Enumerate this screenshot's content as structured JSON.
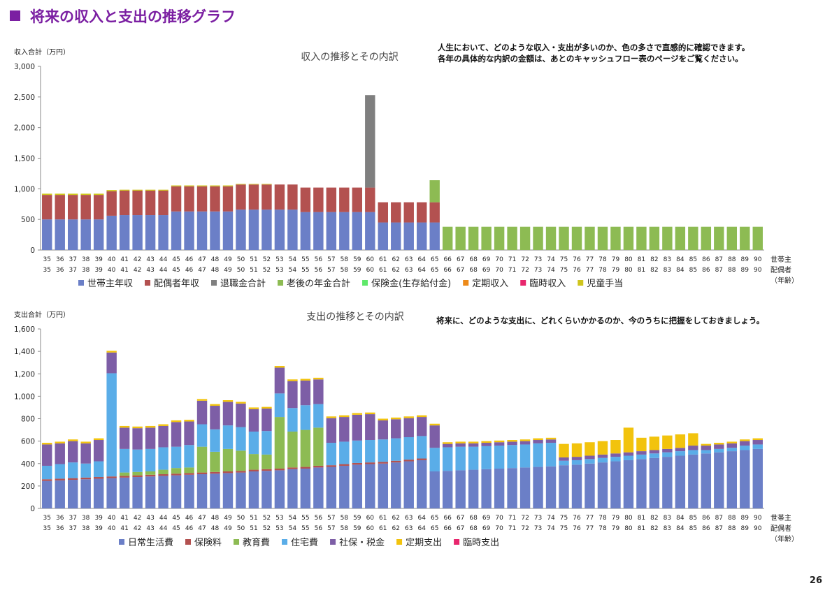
{
  "page": {
    "title": "将来の収入と支出の推移グラフ",
    "page_number": "26",
    "income_note": [
      "人生において、どのような収入・支出が多いのか、色の多さで直感的に確認できます。",
      "各年の具体的な内訳の金額は、あとのキャッシュフロー表のページをご覧ください。"
    ],
    "expense_note": "将来に、どのような支出に、どれくらいかかるのか、今のうちに把握をしておきましょう。"
  },
  "chart_data": [
    {
      "type": "bar",
      "stacked": true,
      "title": "収入の推移とその内訳",
      "ylabel": "収入合計（万円）",
      "ylim": [
        0,
        3000
      ],
      "yticks": [
        "0",
        "500",
        "1,000",
        "1,500",
        "2,000",
        "2,500",
        "3,000"
      ],
      "grid": false,
      "legend_position": "bottom",
      "x_axis_label": [
        "世帯主",
        "配偶者",
        "（年齢）"
      ],
      "categories_head": [
        "35",
        "36",
        "37",
        "38",
        "39",
        "40",
        "41",
        "42",
        "43",
        "44",
        "45",
        "46",
        "47",
        "48",
        "49",
        "50",
        "51",
        "52",
        "53",
        "54",
        "55",
        "56",
        "57",
        "58",
        "59",
        "60",
        "61",
        "62",
        "63",
        "64",
        "65",
        "66",
        "67",
        "68",
        "69",
        "70",
        "71",
        "72",
        "73",
        "74",
        "75",
        "76",
        "77",
        "78",
        "79",
        "80",
        "81",
        "82",
        "83",
        "84",
        "85",
        "86",
        "87",
        "88",
        "89",
        "90"
      ],
      "categories_spouse": [
        "35",
        "36",
        "37",
        "38",
        "39",
        "40",
        "41",
        "42",
        "43",
        "44",
        "45",
        "46",
        "47",
        "48",
        "49",
        "50",
        "51",
        "52",
        "53",
        "54",
        "55",
        "56",
        "57",
        "58",
        "59",
        "60",
        "61",
        "62",
        "63",
        "64",
        "65",
        "66",
        "67",
        "68",
        "69",
        "70",
        "71",
        "72",
        "73",
        "74",
        "75",
        "76",
        "77",
        "78",
        "79",
        "80",
        "81",
        "82",
        "83",
        "84",
        "85",
        "86",
        "87",
        "88",
        "89",
        "90"
      ],
      "series": [
        {
          "name": "世帯主年収",
          "color": "#6b7fc7",
          "values": [
            500,
            500,
            500,
            500,
            500,
            560,
            570,
            570,
            570,
            570,
            630,
            630,
            630,
            630,
            630,
            660,
            660,
            660,
            660,
            660,
            620,
            620,
            620,
            620,
            620,
            620,
            450,
            450,
            450,
            450,
            450,
            0,
            0,
            0,
            0,
            0,
            0,
            0,
            0,
            0,
            0,
            0,
            0,
            0,
            0,
            0,
            0,
            0,
            0,
            0,
            0,
            0,
            0,
            0,
            0,
            0
          ]
        },
        {
          "name": "配偶者年収",
          "color": "#b35150",
          "values": [
            400,
            400,
            400,
            400,
            400,
            400,
            400,
            400,
            400,
            400,
            410,
            410,
            410,
            410,
            410,
            410,
            410,
            410,
            410,
            410,
            400,
            400,
            400,
            400,
            400,
            400,
            330,
            330,
            330,
            330,
            330,
            0,
            0,
            0,
            0,
            0,
            0,
            0,
            0,
            0,
            0,
            0,
            0,
            0,
            0,
            0,
            0,
            0,
            0,
            0,
            0,
            0,
            0,
            0,
            0,
            0
          ]
        },
        {
          "name": "退職金合計",
          "color": "#7f7f7f",
          "values": [
            0,
            0,
            0,
            0,
            0,
            0,
            0,
            0,
            0,
            0,
            0,
            0,
            0,
            0,
            0,
            0,
            0,
            0,
            0,
            0,
            0,
            0,
            0,
            0,
            0,
            1510,
            0,
            0,
            0,
            0,
            0,
            0,
            0,
            0,
            0,
            0,
            0,
            0,
            0,
            0,
            0,
            0,
            0,
            0,
            0,
            0,
            0,
            0,
            0,
            0,
            0,
            0,
            0,
            0,
            0,
            0
          ]
        },
        {
          "name": "老後の年金合計",
          "color": "#8dbb53",
          "values": [
            0,
            0,
            0,
            0,
            0,
            0,
            0,
            0,
            0,
            0,
            0,
            0,
            0,
            0,
            0,
            0,
            0,
            0,
            0,
            0,
            0,
            0,
            0,
            0,
            0,
            0,
            0,
            0,
            0,
            0,
            360,
            380,
            380,
            380,
            380,
            380,
            380,
            380,
            380,
            380,
            380,
            380,
            380,
            380,
            380,
            380,
            380,
            380,
            380,
            380,
            380,
            380,
            380,
            380,
            380,
            380
          ]
        },
        {
          "name": "保険金(生存給付金)",
          "color": "#5fe86a",
          "values": [
            0,
            0,
            0,
            0,
            0,
            0,
            0,
            0,
            0,
            0,
            0,
            0,
            0,
            0,
            0,
            0,
            0,
            0,
            0,
            0,
            0,
            0,
            0,
            0,
            0,
            0,
            0,
            0,
            0,
            0,
            0,
            0,
            0,
            0,
            0,
            0,
            0,
            0,
            0,
            0,
            0,
            0,
            0,
            0,
            0,
            0,
            0,
            0,
            0,
            0,
            0,
            0,
            0,
            0,
            0,
            0
          ]
        },
        {
          "name": "定期収入",
          "color": "#ed8a1a",
          "values": [
            0,
            0,
            0,
            0,
            0,
            0,
            0,
            0,
            0,
            0,
            0,
            0,
            0,
            0,
            0,
            0,
            0,
            0,
            0,
            0,
            0,
            0,
            0,
            0,
            0,
            0,
            0,
            0,
            0,
            0,
            0,
            0,
            0,
            0,
            0,
            0,
            0,
            0,
            0,
            0,
            0,
            0,
            0,
            0,
            0,
            0,
            0,
            0,
            0,
            0,
            0,
            0,
            0,
            0,
            0,
            0
          ]
        },
        {
          "name": "臨時収入",
          "color": "#e8266d",
          "values": [
            0,
            0,
            0,
            0,
            0,
            0,
            0,
            0,
            0,
            0,
            0,
            0,
            0,
            0,
            0,
            0,
            0,
            0,
            0,
            0,
            0,
            0,
            0,
            0,
            0,
            0,
            0,
            0,
            0,
            0,
            0,
            0,
            0,
            0,
            0,
            0,
            0,
            0,
            0,
            0,
            0,
            0,
            0,
            0,
            0,
            0,
            0,
            0,
            0,
            0,
            0,
            0,
            0,
            0,
            0,
            0
          ]
        },
        {
          "name": "児童手当",
          "color": "#cfc51d",
          "values": [
            20,
            20,
            20,
            20,
            20,
            20,
            15,
            15,
            15,
            15,
            15,
            15,
            15,
            15,
            15,
            10,
            10,
            10,
            0,
            0,
            0,
            0,
            0,
            0,
            0,
            0,
            0,
            0,
            0,
            0,
            0,
            0,
            0,
            0,
            0,
            0,
            0,
            0,
            0,
            0,
            0,
            0,
            0,
            0,
            0,
            0,
            0,
            0,
            0,
            0,
            0,
            0,
            0,
            0,
            0,
            0
          ]
        }
      ]
    },
    {
      "type": "bar",
      "stacked": true,
      "title": "支出の推移とその内訳",
      "ylabel": "支出合計（万円）",
      "ylim": [
        0,
        1600
      ],
      "yticks": [
        "0",
        "200",
        "400",
        "600",
        "800",
        "1,000",
        "1,200",
        "1,400",
        "1,600"
      ],
      "grid": false,
      "legend_position": "bottom",
      "x_axis_label": [
        "世帯主",
        "配偶者",
        "（年齢）"
      ],
      "categories_head": [
        "35",
        "36",
        "37",
        "38",
        "39",
        "40",
        "41",
        "42",
        "43",
        "44",
        "45",
        "46",
        "47",
        "48",
        "49",
        "50",
        "51",
        "52",
        "53",
        "54",
        "55",
        "56",
        "57",
        "58",
        "59",
        "60",
        "61",
        "62",
        "63",
        "64",
        "65",
        "66",
        "67",
        "68",
        "69",
        "70",
        "71",
        "72",
        "73",
        "74",
        "75",
        "76",
        "77",
        "78",
        "79",
        "80",
        "81",
        "82",
        "83",
        "84",
        "85",
        "86",
        "87",
        "88",
        "89",
        "90"
      ],
      "categories_spouse": [
        "35",
        "36",
        "37",
        "38",
        "39",
        "40",
        "41",
        "42",
        "43",
        "44",
        "45",
        "46",
        "47",
        "48",
        "49",
        "50",
        "51",
        "52",
        "53",
        "54",
        "55",
        "56",
        "57",
        "58",
        "59",
        "60",
        "61",
        "62",
        "63",
        "64",
        "65",
        "66",
        "67",
        "68",
        "69",
        "70",
        "71",
        "72",
        "73",
        "74",
        "75",
        "76",
        "77",
        "78",
        "79",
        "80",
        "81",
        "82",
        "83",
        "84",
        "85",
        "86",
        "87",
        "88",
        "89",
        "90"
      ],
      "series": [
        {
          "name": "日常生活費",
          "color": "#6b7fc7",
          "values": [
            245,
            250,
            255,
            260,
            265,
            270,
            275,
            280,
            285,
            290,
            295,
            300,
            305,
            310,
            315,
            320,
            330,
            335,
            340,
            350,
            355,
            365,
            370,
            380,
            390,
            395,
            400,
            410,
            420,
            430,
            330,
            335,
            340,
            345,
            350,
            355,
            360,
            365,
            370,
            375,
            385,
            390,
            400,
            410,
            420,
            430,
            440,
            450,
            460,
            470,
            480,
            490,
            500,
            510,
            520,
            530
          ]
        },
        {
          "name": "保険料",
          "color": "#b35150",
          "values": [
            15,
            15,
            15,
            15,
            15,
            15,
            15,
            15,
            15,
            15,
            15,
            15,
            15,
            15,
            15,
            15,
            15,
            15,
            15,
            15,
            15,
            15,
            15,
            15,
            15,
            15,
            15,
            15,
            15,
            15,
            0,
            0,
            0,
            0,
            0,
            0,
            0,
            0,
            0,
            0,
            0,
            0,
            0,
            0,
            0,
            0,
            0,
            0,
            0,
            0,
            0,
            0,
            0,
            0,
            0,
            0
          ]
        },
        {
          "name": "教育費",
          "color": "#8dbb53",
          "values": [
            0,
            0,
            0,
            0,
            0,
            0,
            30,
            30,
            30,
            40,
            50,
            50,
            230,
            180,
            200,
            180,
            140,
            130,
            460,
            320,
            330,
            340,
            0,
            0,
            0,
            0,
            0,
            0,
            0,
            0,
            0,
            0,
            0,
            0,
            0,
            0,
            0,
            0,
            0,
            0,
            0,
            0,
            0,
            0,
            0,
            0,
            0,
            0,
            0,
            0,
            0,
            0,
            0,
            0,
            0,
            0
          ]
        },
        {
          "name": "住宅費",
          "color": "#5aade8",
          "values": [
            120,
            130,
            140,
            125,
            140,
            920,
            210,
            200,
            200,
            200,
            190,
            200,
            200,
            200,
            210,
            210,
            200,
            210,
            210,
            210,
            220,
            210,
            200,
            200,
            200,
            200,
            200,
            200,
            200,
            200,
            210,
            210,
            210,
            205,
            205,
            205,
            205,
            205,
            210,
            210,
            40,
            40,
            40,
            40,
            40,
            40,
            40,
            40,
            40,
            40,
            40,
            30,
            30,
            30,
            40,
            40
          ]
        },
        {
          "name": "社保・税金",
          "color": "#7d5ea6",
          "values": [
            190,
            185,
            190,
            180,
            190,
            185,
            190,
            190,
            190,
            190,
            220,
            210,
            210,
            210,
            210,
            210,
            200,
            200,
            230,
            240,
            220,
            220,
            220,
            220,
            230,
            230,
            170,
            170,
            170,
            170,
            200,
            30,
            30,
            30,
            30,
            30,
            30,
            30,
            30,
            30,
            30,
            30,
            30,
            30,
            30,
            30,
            30,
            30,
            30,
            30,
            40,
            40,
            40,
            40,
            40,
            40
          ]
        },
        {
          "name": "定期支出",
          "color": "#f2c30d",
          "values": [
            15,
            15,
            15,
            15,
            15,
            15,
            15,
            15,
            15,
            15,
            15,
            15,
            15,
            15,
            15,
            15,
            15,
            15,
            15,
            15,
            15,
            15,
            15,
            15,
            15,
            15,
            15,
            15,
            15,
            15,
            15,
            15,
            15,
            15,
            15,
            15,
            15,
            15,
            15,
            15,
            120,
            120,
            120,
            120,
            120,
            220,
            120,
            120,
            120,
            120,
            110,
            15,
            15,
            15,
            15,
            15
          ]
        },
        {
          "name": "臨時支出",
          "color": "#e8266d",
          "values": [
            0,
            0,
            0,
            0,
            0,
            0,
            0,
            0,
            0,
            0,
            0,
            0,
            0,
            0,
            0,
            0,
            0,
            0,
            0,
            0,
            0,
            0,
            0,
            0,
            0,
            0,
            0,
            0,
            0,
            0,
            0,
            0,
            0,
            0,
            0,
            0,
            0,
            0,
            0,
            0,
            0,
            0,
            0,
            0,
            0,
            0,
            0,
            0,
            0,
            0,
            0,
            0,
            0,
            0,
            0,
            0
          ]
        }
      ]
    }
  ]
}
